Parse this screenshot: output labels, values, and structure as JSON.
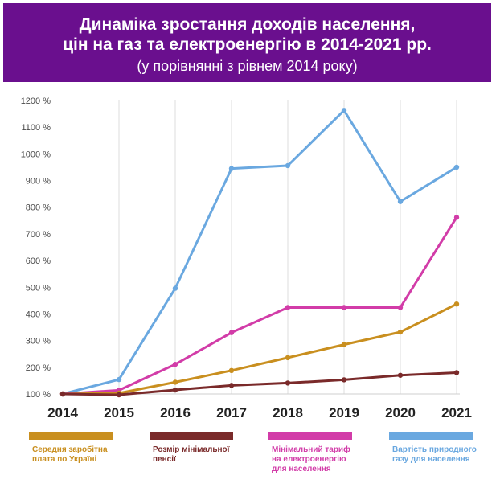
{
  "header": {
    "title_line1": "Динаміка зростання доходів населення,",
    "title_line2": "цін на газ та електроенергію в 2014-2021 рр.",
    "subtitle": "(у порівнянні з рівнем 2014 року)"
  },
  "chart_data": {
    "type": "line",
    "title": "Динаміка зростання доходів населення, цін на газ та електроенергію в 2014-2021 рр.",
    "subtitle": "(у порівнянні з рівнем 2014 року)",
    "x": [
      "2014",
      "2015",
      "2016",
      "2017",
      "2018",
      "2019",
      "2020",
      "2021"
    ],
    "y_ticks": [
      "100 %",
      "200 %",
      "300 %",
      "400 %",
      "500 %",
      "600 %",
      "700 %",
      "800 %",
      "900 %",
      "1000 %",
      "1100 %",
      "1200 %"
    ],
    "ylim": [
      100,
      1200
    ],
    "grid": "vertical",
    "legend_position": "bottom",
    "series": [
      {
        "name": "Середня заробітна плата по Україні",
        "color": "#c98f1f",
        "values": [
          100,
          103,
          144,
          188,
          236,
          285,
          332,
          437
        ]
      },
      {
        "name": "Розмір мінімальної пенсії",
        "color": "#7a2a2a",
        "values": [
          100,
          97,
          115,
          132,
          141,
          153,
          170,
          180
        ]
      },
      {
        "name": "Мінімальний тариф на електроенергію для населення",
        "color": "#d23ca8",
        "values": [
          100,
          114,
          211,
          330,
          424,
          424,
          424,
          762
        ]
      },
      {
        "name": "Вартість природного газу для населення",
        "color": "#6aa8e0",
        "values": [
          100,
          154,
          496,
          945,
          956,
          1163,
          821,
          950
        ]
      }
    ]
  },
  "legend": [
    {
      "line1": "Середня заробітна",
      "line2": "плата по Україні",
      "line3": ""
    },
    {
      "line1": "Розмір мінімальної",
      "line2": "пенсії",
      "line3": ""
    },
    {
      "line1": "Мінімальний тариф",
      "line2": "на електроенергію",
      "line3": "для населення"
    },
    {
      "line1": "Вартість природного",
      "line2": "газу для населення",
      "line3": ""
    }
  ]
}
